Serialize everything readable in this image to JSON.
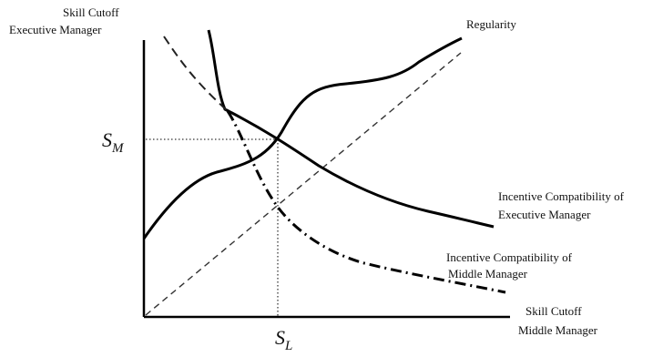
{
  "axes": {
    "y_label_line1": "Skill Cutoff",
    "y_label_line2": "Executive Manager",
    "x_label_line1": "Skill Cutoff",
    "x_label_line2": "Middle Manager"
  },
  "markers": {
    "s_m_main": "S",
    "s_m_sub": "M",
    "s_l_main": "S",
    "s_l_sub": "L"
  },
  "curves": {
    "regularity": "Regularity",
    "ic_exec_line1": "Incentive Compatibility of",
    "ic_exec_line2": "Executive Manager",
    "ic_mid_line1": "Incentive Compatibility of",
    "ic_mid_line2": "Middle Manager"
  }
}
